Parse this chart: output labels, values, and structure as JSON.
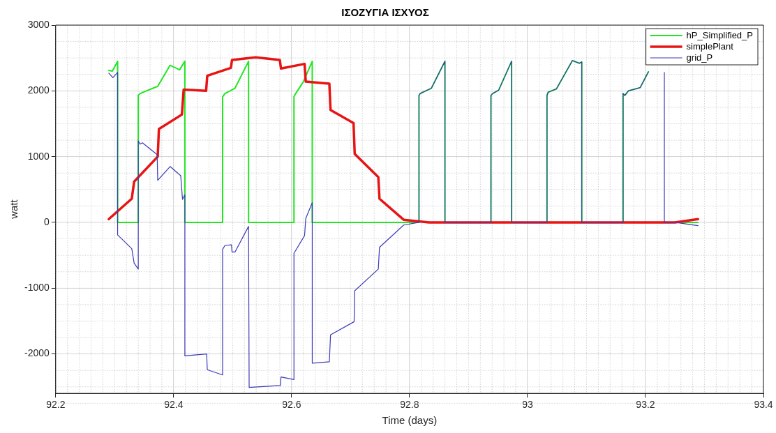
{
  "chart_data": {
    "type": "line",
    "title": "ΙΣΟΖΥΓΙΑ ΙΣΧΥΟΣ",
    "xlabel": "Time (days)",
    "ylabel": "watt",
    "xlim": [
      92.2,
      93.4
    ],
    "xticks": [
      92.2,
      92.4,
      92.6,
      92.8,
      93,
      93.2,
      93.4
    ],
    "ylim": [
      -2600,
      3000
    ],
    "yticks": [
      -2000,
      -1000,
      0,
      1000,
      2000,
      3000
    ],
    "grid": true,
    "legend": "top right",
    "line_style": "solid",
    "marker": "none",
    "series": [
      {
        "name": "hP_Simplified_P",
        "color": "#22e622",
        "x": [
          92.29,
          92.296,
          92.305,
          92.305,
          92.34,
          92.34,
          92.343,
          92.373,
          92.394,
          92.41,
          92.419,
          92.419,
          92.483,
          92.483,
          92.487,
          92.504,
          92.527,
          92.527,
          92.604,
          92.604,
          92.607,
          92.62,
          92.635,
          92.635,
          92.816,
          92.816,
          92.818,
          92.837,
          92.86,
          92.86,
          92.938,
          92.938,
          92.941,
          92.951,
          92.973,
          92.973,
          93.033,
          93.033,
          93.035,
          93.049,
          93.076,
          93.088,
          93.092,
          93.092,
          93.162,
          93.162,
          93.165,
          93.171,
          93.191,
          93.205,
          93.22,
          93.232,
          93.289
        ],
        "values": [
          2310,
          2300,
          2450,
          0,
          0,
          1930,
          1960,
          2070,
          2390,
          2320,
          2450,
          0,
          0,
          1910,
          1960,
          2040,
          2450,
          0,
          0,
          1910,
          1960,
          2140,
          2450,
          0,
          0,
          1930,
          1960,
          2040,
          2450,
          0,
          0,
          1930,
          1960,
          2010,
          2450,
          0,
          0,
          1930,
          1980,
          2030,
          2460,
          2420,
          2440,
          0,
          0,
          1960,
          1930,
          2000,
          2050,
          2290,
          null,
          0,
          0
        ]
      },
      {
        "name": "simplePlant",
        "color": "#e81414",
        "x": [
          92.29,
          92.329,
          92.333,
          92.373,
          92.375,
          92.414,
          92.417,
          92.455,
          92.457,
          92.497,
          92.499,
          92.539,
          92.58,
          92.582,
          92.622,
          92.624,
          92.664,
          92.666,
          92.705,
          92.707,
          92.747,
          92.749,
          92.79,
          92.833,
          93.25,
          93.289
        ],
        "values": [
          50,
          360,
          620,
          1000,
          1420,
          1640,
          2020,
          2000,
          2230,
          2350,
          2470,
          2510,
          2470,
          2340,
          2410,
          2140,
          2110,
          1710,
          1510,
          1040,
          690,
          360,
          40,
          0,
          0,
          50
        ]
      },
      {
        "name": "grid_P",
        "color": "#3a3ab8",
        "x": [
          92.29,
          92.297,
          92.305,
          92.305,
          92.329,
          92.333,
          92.34,
          92.34,
          92.343,
          92.347,
          92.372,
          92.373,
          92.394,
          92.412,
          92.415,
          92.419,
          92.419,
          92.456,
          92.457,
          92.483,
          92.483,
          92.487,
          92.498,
          92.499,
          92.504,
          92.527,
          92.528,
          92.581,
          92.582,
          92.604,
          92.604,
          92.622,
          92.624,
          92.635,
          92.635,
          92.664,
          92.666,
          92.706,
          92.707,
          92.747,
          92.749,
          92.79,
          92.816,
          92.816,
          92.818,
          92.837,
          92.86,
          92.86,
          92.938,
          92.938,
          92.941,
          92.951,
          92.973,
          92.973,
          93.033,
          93.033,
          93.035,
          93.049,
          93.076,
          93.088,
          93.092,
          93.092,
          93.162,
          93.162,
          93.165,
          93.171,
          93.191,
          93.205,
          93.22,
          93.232,
          93.232,
          93.25,
          93.289
        ],
        "values": [
          2270,
          2200,
          2280,
          -190,
          -400,
          -620,
          -710,
          1240,
          1190,
          1210,
          1030,
          640,
          850,
          710,
          350,
          420,
          -2030,
          -2000,
          -2240,
          -2320,
          -410,
          -350,
          -340,
          -450,
          -450,
          -60,
          -2510,
          -2480,
          -2350,
          -2390,
          -470,
          -200,
          60,
          300,
          -2140,
          -2120,
          -1710,
          -1510,
          -1040,
          -710,
          -380,
          -40,
          0,
          1930,
          1960,
          2040,
          2450,
          0,
          0,
          1930,
          1960,
          2010,
          2450,
          0,
          0,
          1930,
          1980,
          2030,
          2460,
          2420,
          2440,
          0,
          0,
          1960,
          1930,
          2000,
          2050,
          2290,
          null,
          2280,
          0,
          0,
          -50
        ]
      }
    ]
  }
}
